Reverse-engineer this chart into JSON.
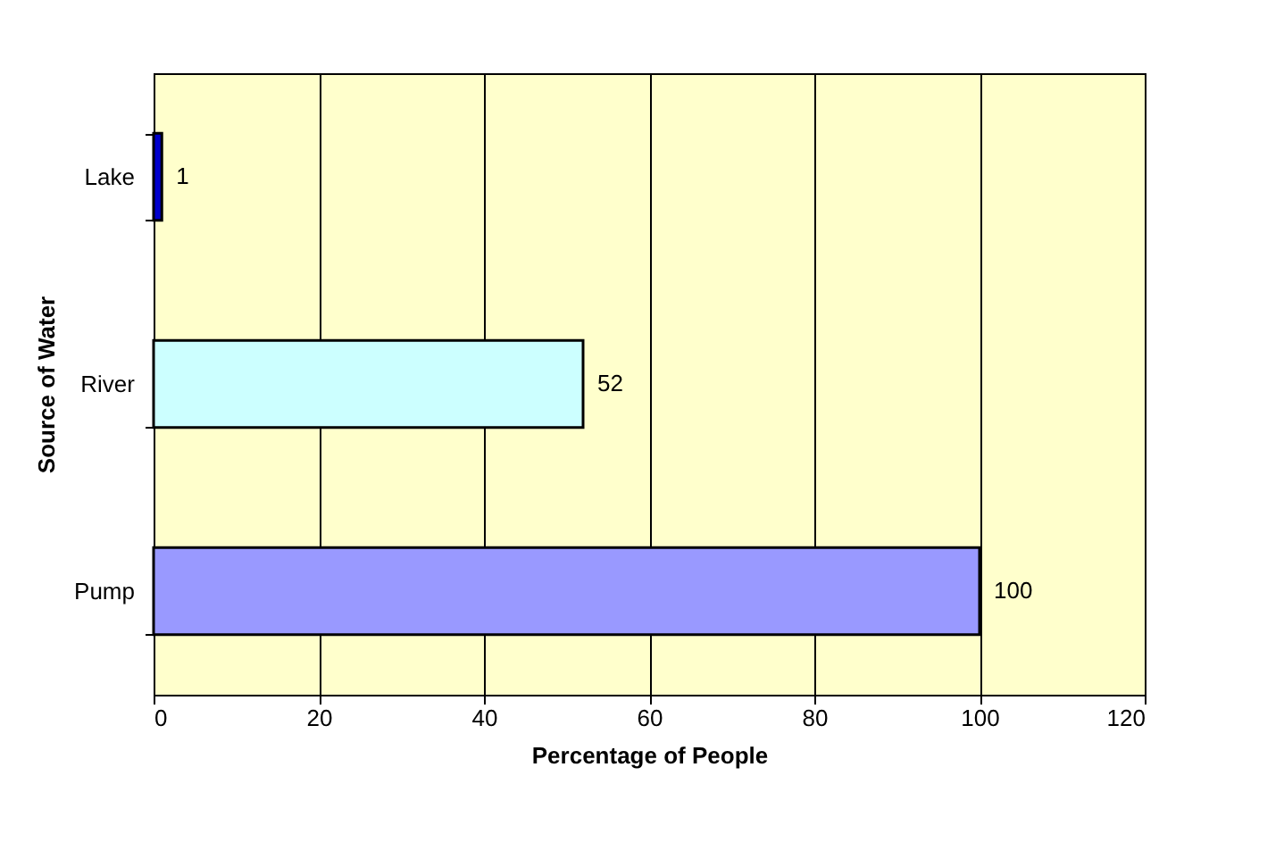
{
  "chart_data": {
    "type": "bar",
    "orientation": "horizontal",
    "xlabel": "Percentage of People",
    "ylabel": "Source of Water",
    "categories": [
      "Lake",
      "River",
      "Pump"
    ],
    "values": [
      1,
      52,
      100
    ],
    "colors": [
      "#0000cc",
      "#ccffff",
      "#9999ff"
    ],
    "xlim": [
      0,
      120
    ],
    "xticks": [
      0,
      20,
      40,
      60,
      80,
      100,
      120
    ],
    "grid": "x",
    "data_labels": true
  }
}
